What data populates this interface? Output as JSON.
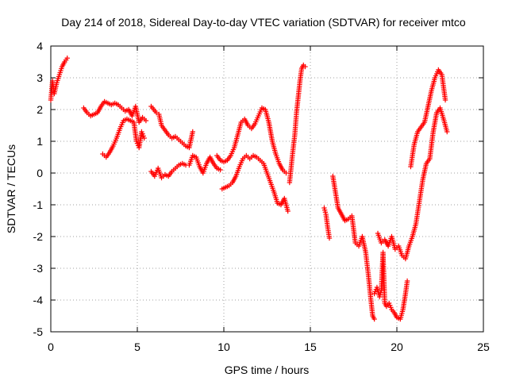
{
  "chart_data": {
    "type": "scatter",
    "title": "Day 214 of 2018, Sidereal Day-to-day VTEC variation (SDTVAR) for receiver mtco",
    "xlabel": "GPS time / hours",
    "ylabel": "SDTVAR / TECUs",
    "xlim": [
      0,
      25
    ],
    "ylim": [
      -5,
      4
    ],
    "xticks": [
      0,
      5,
      10,
      15,
      20,
      25
    ],
    "yticks": [
      -5,
      -4,
      -3,
      -2,
      -1,
      0,
      1,
      2,
      3,
      4
    ],
    "grid": true,
    "marker": "+",
    "color": "#ff0000",
    "series": [
      {
        "x": [
          0.0,
          0.1,
          0.2,
          0.35,
          0.5,
          0.65,
          0.8,
          0.95
        ],
        "y": [
          2.3,
          2.9,
          2.5,
          2.85,
          3.1,
          3.35,
          3.5,
          3.62
        ]
      },
      {
        "x": [
          1.9,
          2.1,
          2.3,
          2.5,
          2.7,
          2.9,
          3.1,
          3.3,
          3.5,
          3.7,
          3.9,
          4.1,
          4.3,
          4.5,
          4.7,
          4.9,
          5.1,
          5.3,
          5.5
        ],
        "y": [
          2.05,
          1.9,
          1.8,
          1.85,
          1.9,
          2.1,
          2.25,
          2.2,
          2.15,
          2.2,
          2.15,
          2.05,
          1.95,
          2.0,
          1.8,
          2.1,
          1.6,
          1.75,
          1.65
        ]
      },
      {
        "x": [
          3.0,
          3.2,
          3.4,
          3.6,
          3.8,
          4.0,
          4.2,
          4.4,
          4.6,
          4.8,
          4.95,
          5.1,
          5.25,
          5.4
        ],
        "y": [
          0.6,
          0.5,
          0.65,
          0.85,
          1.1,
          1.4,
          1.65,
          1.7,
          1.65,
          1.6,
          1.0,
          0.8,
          1.3,
          1.1
        ]
      },
      {
        "x": [
          5.8,
          5.95,
          6.1,
          6.25,
          6.4,
          6.6,
          6.8,
          7.0,
          7.2,
          7.4,
          7.6,
          7.8,
          8.0,
          8.2
        ],
        "y": [
          2.1,
          2.0,
          1.9,
          1.85,
          1.5,
          1.35,
          1.2,
          1.1,
          1.15,
          1.05,
          0.95,
          0.85,
          0.8,
          1.3
        ]
      },
      {
        "x": [
          5.8,
          6.0,
          6.2,
          6.4,
          6.6,
          6.8,
          7.0,
          7.2,
          7.4,
          7.6,
          7.8,
          8.0,
          8.2,
          8.4,
          8.6,
          8.8,
          9.0,
          9.2,
          9.4,
          9.6,
          9.8
        ],
        "y": [
          0.05,
          -0.1,
          0.15,
          -0.15,
          -0.05,
          -0.1,
          0.05,
          0.15,
          0.25,
          0.3,
          0.25,
          0.25,
          0.55,
          0.5,
          0.2,
          0.0,
          0.3,
          0.5,
          0.3,
          0.15,
          0.1
        ]
      },
      {
        "x": [
          9.6,
          9.8,
          10.0,
          10.2,
          10.4,
          10.6,
          10.8,
          11.0,
          11.2,
          11.4,
          11.6,
          11.8,
          12.0,
          12.2,
          12.4,
          12.6,
          12.8,
          13.0,
          13.2,
          13.4,
          13.6
        ],
        "y": [
          0.55,
          0.4,
          0.35,
          0.4,
          0.55,
          0.8,
          1.2,
          1.6,
          1.7,
          1.5,
          1.4,
          1.55,
          1.8,
          2.05,
          2.0,
          1.6,
          1.0,
          0.6,
          0.3,
          0.1,
          0.0
        ]
      },
      {
        "x": [
          9.9,
          10.1,
          10.3,
          10.5,
          10.7,
          10.9,
          11.1,
          11.3,
          11.5,
          11.7,
          11.9,
          12.1,
          12.3,
          12.5,
          12.7,
          12.9,
          13.1,
          13.3,
          13.5,
          13.7
        ],
        "y": [
          -0.5,
          -0.45,
          -0.4,
          -0.3,
          -0.1,
          0.2,
          0.45,
          0.55,
          0.45,
          0.55,
          0.5,
          0.4,
          0.3,
          0.0,
          -0.3,
          -0.6,
          -0.95,
          -1.0,
          -0.8,
          -1.2
        ]
      },
      {
        "x": [
          13.8,
          13.95,
          14.1,
          14.2,
          14.3,
          14.4,
          14.5,
          14.6,
          14.7
        ],
        "y": [
          -0.3,
          0.5,
          1.2,
          1.9,
          2.4,
          2.9,
          3.3,
          3.4,
          3.35
        ]
      },
      {
        "x": [
          15.8,
          15.9,
          16.0,
          16.1
        ],
        "y": [
          -1.1,
          -1.3,
          -1.7,
          -2.05
        ]
      },
      {
        "x": [
          16.3,
          16.45,
          16.6,
          16.8,
          17.0,
          17.2,
          17.4,
          17.6,
          17.8,
          18.0,
          18.2,
          18.35,
          18.5,
          18.6,
          18.7
        ],
        "y": [
          -0.1,
          -0.6,
          -1.1,
          -1.3,
          -1.5,
          -1.45,
          -1.35,
          -2.2,
          -2.3,
          -2.0,
          -2.5,
          -3.2,
          -4.0,
          -4.5,
          -4.6
        ]
      },
      {
        "x": [
          18.7,
          18.85,
          19.0,
          19.1,
          19.2,
          19.3,
          19.4,
          19.55,
          19.7,
          19.85,
          20.0,
          20.2,
          20.35,
          20.5,
          20.6
        ],
        "y": [
          -3.8,
          -3.6,
          -3.9,
          -3.7,
          -2.5,
          -4.1,
          -4.2,
          -4.1,
          -4.3,
          -4.4,
          -4.55,
          -4.6,
          -4.3,
          -3.8,
          -3.4
        ]
      },
      {
        "x": [
          18.9,
          19.1,
          19.3,
          19.5,
          19.7,
          19.9,
          20.1,
          20.3,
          20.5,
          20.7,
          20.9,
          21.1,
          21.3,
          21.5,
          21.7,
          21.9,
          22.1,
          22.3,
          22.5,
          22.7,
          22.9
        ],
        "y": [
          -1.9,
          -2.2,
          -2.1,
          -2.3,
          -2.0,
          -2.4,
          -2.3,
          -2.6,
          -2.7,
          -2.3,
          -2.0,
          -1.6,
          -0.9,
          -0.2,
          0.3,
          0.45,
          1.3,
          1.9,
          2.05,
          1.7,
          1.3
        ]
      },
      {
        "x": [
          20.8,
          21.0,
          21.2,
          21.4,
          21.6,
          21.8,
          22.0,
          22.2,
          22.4,
          22.6,
          22.8
        ],
        "y": [
          0.2,
          0.9,
          1.3,
          1.45,
          1.6,
          2.1,
          2.6,
          3.0,
          3.25,
          3.1,
          2.3
        ]
      }
    ]
  }
}
